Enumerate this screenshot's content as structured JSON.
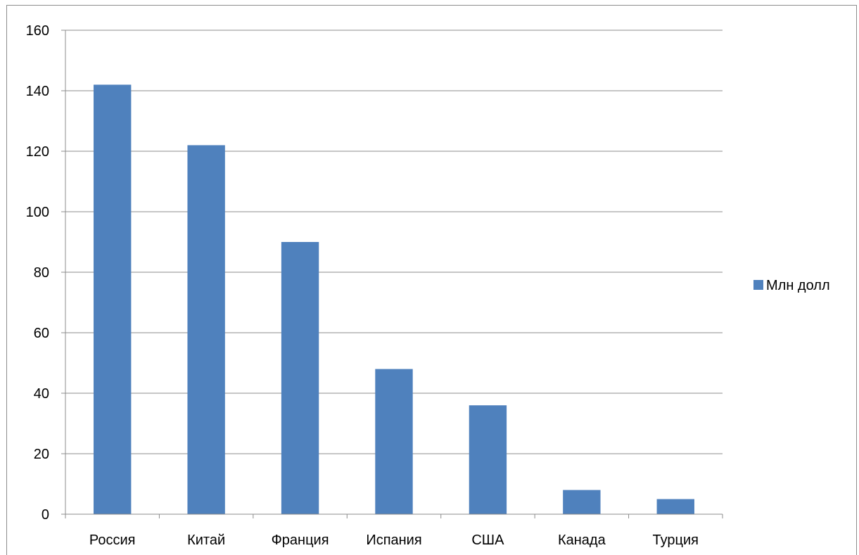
{
  "chart_data": {
    "type": "bar",
    "categories": [
      "Россия",
      "Китай",
      "Франция",
      "Испания",
      "США",
      "Канада",
      "Турция"
    ],
    "series": [
      {
        "name": "Млн долл",
        "values": [
          142,
          122,
          90,
          48,
          36,
          8,
          5
        ],
        "color": "#4F81BD"
      }
    ],
    "title": "",
    "xlabel": "",
    "ylabel": "",
    "ylim": [
      0,
      160
    ],
    "yticks": [
      0,
      20,
      40,
      60,
      80,
      100,
      120,
      140,
      160
    ],
    "grid": true,
    "legend_position": "right"
  }
}
